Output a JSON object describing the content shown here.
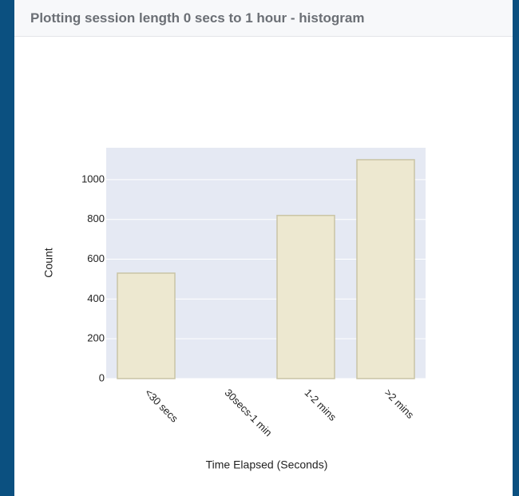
{
  "chart_data": {
    "type": "bar",
    "title": "Plotting session length 0 secs to 1 hour - histogram",
    "x_label": "Time Elapsed (Seconds)",
    "y_label": "Count",
    "categories": [
      "<30 secs",
      "30secs-1 min",
      "1-2 mins",
      ">2 mins"
    ],
    "values": [
      530,
      0,
      820,
      1100
    ],
    "color": "#ede8d0",
    "edge_color": "#c9c4a6",
    "ylim": [
      0,
      1160
    ],
    "yticks": [
      0,
      200,
      400,
      600,
      800,
      1000
    ],
    "grid": true
  }
}
